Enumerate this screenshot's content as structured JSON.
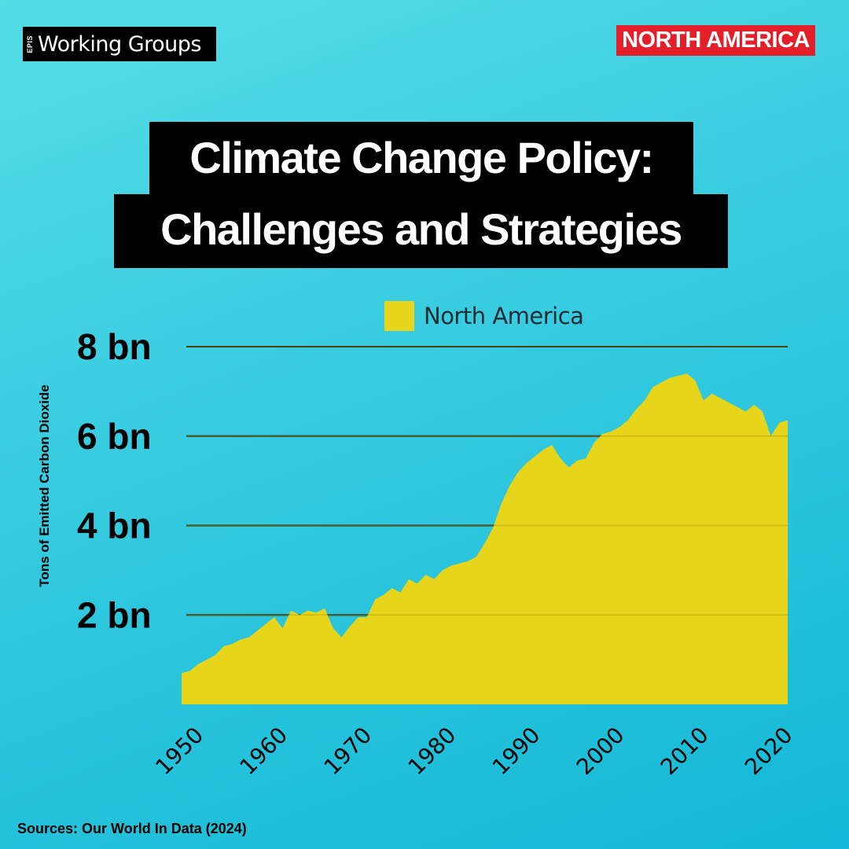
{
  "header": {
    "brand_mark": "EPIS",
    "brand_text": "Working Groups",
    "region_badge": "NORTH AMERICA"
  },
  "title": {
    "line1": "Climate Change  Policy:",
    "line2": "Challenges and Strategies"
  },
  "source": "Sources: Our World In Data (2024)",
  "colors": {
    "fill": "#e6d51a",
    "badge": "#e3202a",
    "background": "#36cbe0",
    "gridline": "#000000"
  },
  "chart_data": {
    "type": "area",
    "title": "",
    "xlabel": "",
    "ylabel": "Tons of Emitted Carbon Dioxide",
    "legend": "top",
    "grid": true,
    "ylim": [
      0,
      8000000000
    ],
    "xlim": [
      1950,
      2022
    ],
    "y_ticks": [
      {
        "value": 2000000000,
        "label": "2 bn"
      },
      {
        "value": 4000000000,
        "label": "4 bn"
      },
      {
        "value": 6000000000,
        "label": "6 bn"
      },
      {
        "value": 8000000000,
        "label": "8 bn"
      }
    ],
    "x_ticks": [
      1950,
      1960,
      1970,
      1980,
      1990,
      2000,
      2010,
      2020
    ],
    "series": [
      {
        "name": "North America",
        "x": [
          1950,
          1951,
          1952,
          1953,
          1954,
          1955,
          1956,
          1957,
          1958,
          1959,
          1960,
          1961,
          1962,
          1963,
          1964,
          1965,
          1966,
          1967,
          1968,
          1969,
          1970,
          1971,
          1972,
          1973,
          1974,
          1975,
          1976,
          1977,
          1978,
          1979,
          1980,
          1981,
          1982,
          1983,
          1984,
          1985,
          1986,
          1987,
          1988,
          1989,
          1990,
          1991,
          1992,
          1993,
          1994,
          1995,
          1996,
          1997,
          1998,
          1999,
          2000,
          2001,
          2002,
          2003,
          2004,
          2005,
          2006,
          2007,
          2008,
          2009,
          2010,
          2011,
          2012,
          2013,
          2014,
          2015,
          2016,
          2017,
          2018,
          2019,
          2020,
          2021,
          2022
        ],
        "values": [
          700000000,
          750000000,
          900000000,
          1000000000,
          1100000000,
          1300000000,
          1350000000,
          1450000000,
          1500000000,
          1650000000,
          1800000000,
          1950000000,
          1700000000,
          2100000000,
          2000000000,
          2100000000,
          2050000000,
          2150000000,
          1700000000,
          1500000000,
          1750000000,
          1950000000,
          1950000000,
          2350000000,
          2450000000,
          2600000000,
          2500000000,
          2800000000,
          2700000000,
          2900000000,
          2800000000,
          3000000000,
          3100000000,
          3150000000,
          3200000000,
          3300000000,
          3600000000,
          3950000000,
          4500000000,
          4900000000,
          5200000000,
          5400000000,
          5550000000,
          5700000000,
          5800000000,
          5500000000,
          5300000000,
          5450000000,
          5500000000,
          5850000000,
          6050000000,
          6100000000,
          6200000000,
          6350000000,
          6600000000,
          6800000000,
          7100000000,
          7200000000,
          7300000000,
          7350000000,
          7400000000,
          7250000000,
          6800000000,
          6950000000,
          6850000000,
          6750000000,
          6650000000,
          6550000000,
          6700000000,
          6550000000,
          6000000000,
          6300000000,
          6350000000
        ]
      }
    ]
  }
}
